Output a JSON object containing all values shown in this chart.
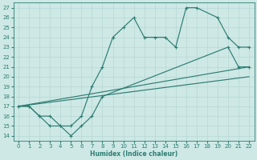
{
  "xlabel": "Humidex (Indice chaleur)",
  "bg_color": "#cde8e5",
  "line_color": "#2e7d72",
  "grid_color": "#b8d8d4",
  "xlim": [
    -0.5,
    22.5
  ],
  "ylim": [
    13.5,
    27.5
  ],
  "xticks": [
    0,
    1,
    2,
    3,
    4,
    5,
    6,
    7,
    8,
    9,
    10,
    11,
    12,
    13,
    14,
    15,
    16,
    17,
    18,
    19,
    20,
    21,
    22
  ],
  "yticks": [
    14,
    15,
    16,
    17,
    18,
    19,
    20,
    21,
    22,
    23,
    24,
    25,
    26,
    27
  ],
  "line_peak": {
    "x": [
      0,
      1,
      2,
      3,
      4,
      5,
      6,
      7,
      8,
      9,
      10,
      11,
      12,
      13,
      14,
      15,
      16,
      17,
      19,
      20,
      21,
      22
    ],
    "y": [
      17,
      17,
      16,
      16,
      15,
      15,
      16,
      19,
      21,
      24,
      25,
      26,
      24,
      24,
      24,
      23,
      27,
      27,
      26,
      24,
      23,
      23
    ]
  },
  "line_mid": {
    "x": [
      0,
      1,
      2,
      3,
      4,
      5,
      6,
      7,
      8,
      20,
      21,
      22
    ],
    "y": [
      17,
      17,
      16,
      15,
      15,
      14,
      15,
      16,
      18,
      23,
      21,
      21
    ]
  },
  "line_low1": {
    "x": [
      0,
      22
    ],
    "y": [
      17,
      21
    ]
  },
  "line_low2": {
    "x": [
      0,
      22
    ],
    "y": [
      17,
      20
    ]
  }
}
